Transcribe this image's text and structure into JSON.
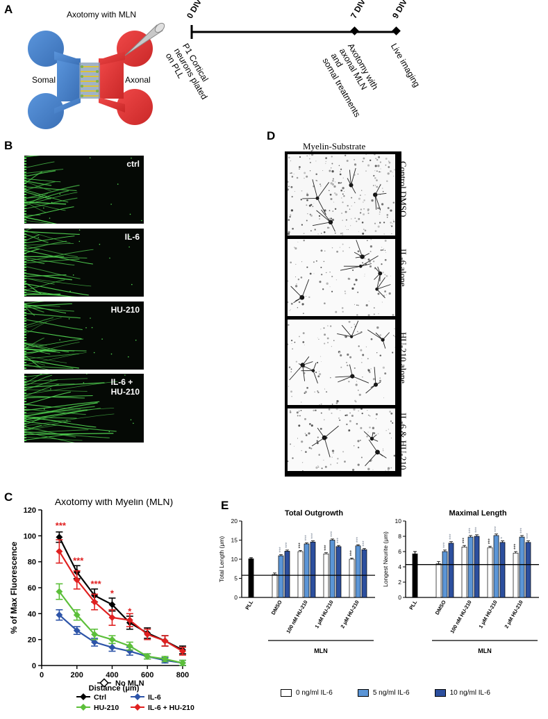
{
  "panels": {
    "A": "A",
    "B": "B",
    "C": "C",
    "D": "D",
    "E": "E"
  },
  "panel_a": {
    "axotomy_label": "Axotomy with MLN",
    "somal_label": "Somal",
    "axonal_label": "Axonal",
    "timeline": [
      {
        "day": "0 DIV",
        "event": "P1 Cortical\nneurons plated\non PLL"
      },
      {
        "day": "7 DIV",
        "event": "Axotomy with\naxonal MLN\nand\nsomal treatments"
      },
      {
        "day": "9 DIV",
        "event": "Live imaging"
      }
    ],
    "colors": {
      "somal": "#3f7fc9",
      "axonal": "#e23a3a",
      "grooves": "#7aa86a"
    }
  },
  "panel_b": {
    "images": [
      {
        "label": "ctrl"
      },
      {
        "label": "IL-6"
      },
      {
        "label": "HU-210"
      },
      {
        "label": "IL-6 +\nHU-210"
      }
    ],
    "stain_color": "#4fd04f"
  },
  "panel_d": {
    "title": "Myelin-Substrate",
    "images": [
      {
        "label": "Control DMSO"
      },
      {
        "label": "IL-6 alone"
      },
      {
        "label": "HU-210 alone"
      },
      {
        "label": "IL-6 & HU-210"
      }
    ]
  },
  "chart_data": [
    {
      "type": "line",
      "title": "Axotomy with Myelin (MLN)",
      "xlabel": "Distance (μm)",
      "ylabel": "% of Max Fluorescence",
      "xlim": [
        0,
        820
      ],
      "ylim": [
        0,
        120
      ],
      "xticks": [
        0,
        200,
        400,
        600,
        800
      ],
      "yticks": [
        0,
        20,
        40,
        60,
        80,
        100,
        120
      ],
      "x": [
        100,
        200,
        300,
        400,
        500,
        600,
        700,
        800
      ],
      "series": [
        {
          "name": "Ctrl",
          "color": "#000000",
          "values": [
            99,
            72,
            54,
            47,
            33,
            25,
            19,
            12
          ],
          "errors": [
            4,
            5,
            5,
            5,
            5,
            4,
            4,
            3
          ]
        },
        {
          "name": "IL-6",
          "color": "#2d54a8",
          "values": [
            39,
            27,
            18,
            14,
            11,
            7,
            4,
            2
          ],
          "errors": [
            4,
            3,
            3,
            3,
            3,
            2,
            2,
            2
          ]
        },
        {
          "name": "HU-210",
          "color": "#5cbf3a",
          "values": [
            57,
            39,
            24,
            20,
            15,
            7,
            5,
            2
          ],
          "errors": [
            6,
            4,
            4,
            3,
            3,
            2,
            2,
            2
          ]
        },
        {
          "name": "IL-6 + HU-210",
          "color": "#e02020",
          "values": [
            88,
            66,
            49,
            37,
            35,
            24,
            19,
            11
          ],
          "errors": [
            9,
            7,
            6,
            6,
            5,
            4,
            4,
            3
          ]
        }
      ],
      "extra_legend": "No MLN",
      "significance": [
        {
          "x": 100,
          "label": "***"
        },
        {
          "x": 200,
          "label": "***"
        },
        {
          "x": 300,
          "label": "***"
        },
        {
          "x": 400,
          "label": "*"
        },
        {
          "x": 500,
          "label": "*"
        }
      ],
      "significance_color": "#e02020",
      "grid": false,
      "legend_position": "bottom"
    },
    {
      "type": "bar",
      "title": "Total Outgrowth",
      "ylabel": "Total Length (μm)",
      "ylim": [
        0,
        20
      ],
      "yticks": [
        0,
        5,
        10,
        15,
        20
      ],
      "categories": [
        "PLL",
        "DMSO",
        "100 nM HU-210",
        "1 μM HU-210",
        "2 μM HU-210"
      ],
      "series": [
        {
          "name": "0 ng/ml IL-6",
          "color": "#ffffff",
          "values": [
            null,
            6.0,
            12.0,
            11.4,
            10.0
          ],
          "errors": [
            null,
            0.4,
            0.3,
            0.3,
            0.3
          ]
        },
        {
          "name": "5 ng/ml IL-6",
          "color": "#5b95d6",
          "values": [
            null,
            10.9,
            14.0,
            15.0,
            13.5
          ],
          "errors": [
            null,
            0.3,
            0.3,
            0.3,
            0.3
          ]
        },
        {
          "name": "10 ng/ml IL-6",
          "color": "#2c4f9e",
          "values": [
            null,
            12.1,
            14.5,
            13.3,
            12.5
          ],
          "errors": [
            null,
            0.3,
            0.3,
            0.3,
            0.3
          ]
        }
      ],
      "pll_value": 10.1,
      "pll_error": 0.3,
      "pll_color": "#000000",
      "reference_line": 5.8,
      "significance": [
        [
          "",
          "***",
          "***"
        ],
        [
          "***",
          "***",
          "***"
        ],
        [
          "***",
          "***",
          "***"
        ],
        [
          "***",
          "***",
          "***"
        ]
      ],
      "group_label": "MLN"
    },
    {
      "type": "bar",
      "title": "Maximal Length",
      "ylabel": "Longest Neurite (μm)",
      "ylim": [
        0,
        10
      ],
      "yticks": [
        0,
        2,
        4,
        6,
        8,
        10
      ],
      "categories": [
        "PLL",
        "DMSO",
        "100 nM HU-210",
        "1 μM HU-210",
        "2 μM HU-210"
      ],
      "series": [
        {
          "name": "0 ng/ml IL-6",
          "color": "#ffffff",
          "values": [
            null,
            4.4,
            6.6,
            6.5,
            5.8
          ],
          "errors": [
            null,
            0.3,
            0.2,
            0.2,
            0.2
          ]
        },
        {
          "name": "5 ng/ml IL-6",
          "color": "#5b95d6",
          "values": [
            null,
            6.0,
            7.9,
            8.1,
            7.9
          ],
          "errors": [
            null,
            0.2,
            0.2,
            0.2,
            0.2
          ]
        },
        {
          "name": "10 ng/ml IL-6",
          "color": "#2c4f9e",
          "values": [
            null,
            7.1,
            8.0,
            7.2,
            7.2
          ],
          "errors": [
            null,
            0.2,
            0.2,
            0.2,
            0.2
          ]
        }
      ],
      "pll_value": 5.7,
      "pll_error": 0.3,
      "pll_color": "#000000",
      "reference_line": 4.3,
      "significance": [
        [
          "",
          "***",
          "***"
        ],
        [
          "***",
          "***",
          "***"
        ],
        [
          "***",
          "***",
          "*"
        ],
        [
          "***",
          "***",
          "***"
        ]
      ],
      "group_label": "MLN"
    }
  ],
  "legend_e": [
    "0 ng/ml IL-6",
    "5 ng/ml IL-6",
    "10 ng/ml IL-6"
  ]
}
